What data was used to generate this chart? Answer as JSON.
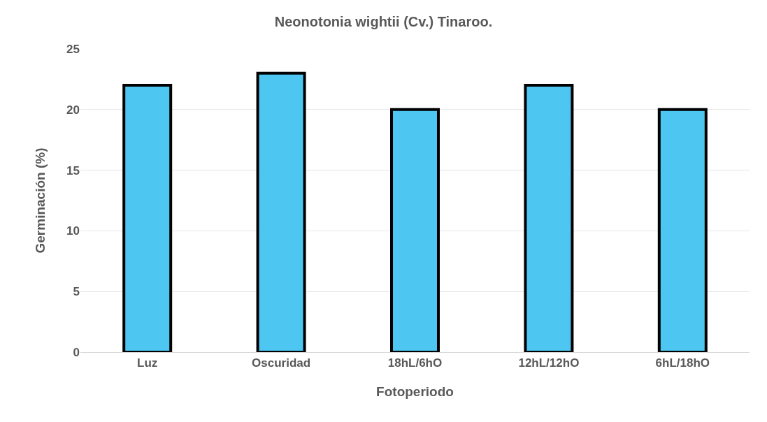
{
  "chart_data": {
    "type": "bar",
    "title": "Neonotonia wightii (Cv.) Tinaroo.",
    "xlabel": "Fotoperiodo",
    "ylabel": "Germinación (%)",
    "categories": [
      "Luz",
      "Oscuridad",
      "18hL/6hO",
      "12hL/12hO",
      "6hL/18hO"
    ],
    "values": [
      22,
      23,
      20,
      22,
      20
    ],
    "color": "#4dc6f2",
    "ylim": [
      0,
      25
    ],
    "yticks": [
      0,
      5,
      10,
      15,
      20,
      25
    ],
    "grid": "y"
  }
}
